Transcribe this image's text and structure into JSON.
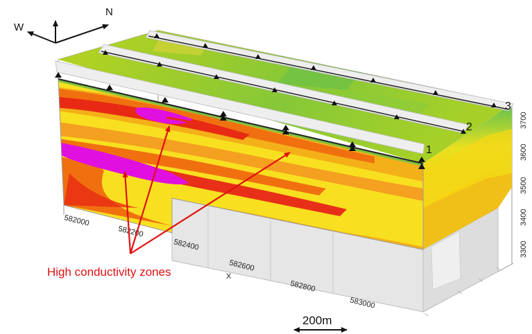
{
  "compass": {
    "west": "W",
    "north": "N"
  },
  "profile_lines": [
    "1",
    "2",
    "3"
  ],
  "x_axis": {
    "title": "X",
    "ticks": [
      "582000",
      "582200",
      "582400",
      "582600",
      "582800",
      "583000"
    ]
  },
  "z_axis": {
    "ticks": [
      "3700",
      "3600",
      "3500",
      "3400",
      "3300"
    ]
  },
  "annotation": {
    "text": "High conductivity zones"
  },
  "scale_bar": {
    "label": "200m"
  },
  "colors": {
    "annotation": "#e01010",
    "high_conductivity": "#e010e0",
    "very_high": "#e81818",
    "high": "#f07010",
    "medium": "#f8d010",
    "low": "#c0d820",
    "very_low": "#3cc060"
  }
}
